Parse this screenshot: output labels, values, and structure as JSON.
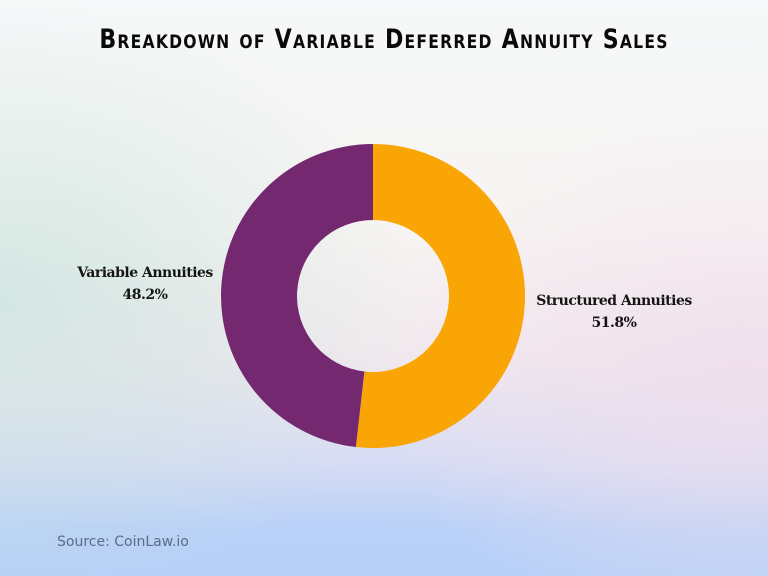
{
  "title": "Breakdown of Variable Deferred Annuity Sales",
  "source": "Source: CoinLaw.io",
  "colors": {
    "variable": "#74286f",
    "structured": "#f9a506",
    "title_text": "#0a0a0a",
    "source_text": "#5b6d88"
  },
  "labels": {
    "variable": {
      "name": "Variable Annuities",
      "value": "48.2%"
    },
    "structured": {
      "name": "Structured Annuities",
      "value": "51.8%"
    }
  },
  "chart_data": {
    "type": "pie",
    "variant": "donut",
    "title": "Breakdown of Variable Deferred Annuity Sales",
    "categories": [
      "Structured Annuities",
      "Variable Annuities"
    ],
    "values": [
      51.8,
      48.2
    ],
    "unit": "%",
    "colors": [
      "#f9a506",
      "#74286f"
    ],
    "start_angle": "12 o'clock, clockwise",
    "legend": "none (direct labels beside slices)",
    "source": "Source: CoinLaw.io"
  }
}
